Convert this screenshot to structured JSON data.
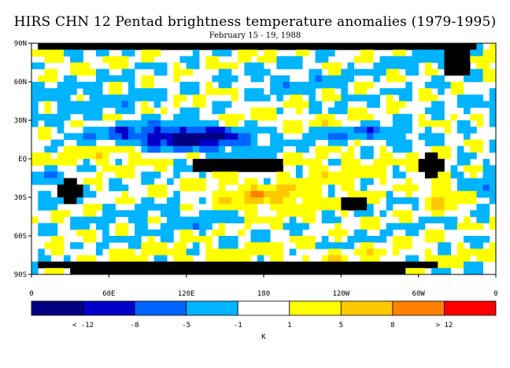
{
  "chart_data": {
    "type": "heatmap",
    "title": "HIRS CHN 12 Pentad brightness temperature anomalies (1979-1995)",
    "subtitle": "February 15 - 19, 1988",
    "y_ticks": [
      "90N",
      "60N",
      "30N",
      "EQ",
      "30S",
      "60S",
      "90S"
    ],
    "y_tick_values": [
      90,
      60,
      30,
      0,
      -30,
      -60,
      -90
    ],
    "x_ticks": [
      "0",
      "60E",
      "120E",
      "180",
      "120W",
      "60W",
      "0"
    ],
    "x_tick_values": [
      0,
      60,
      120,
      180,
      240,
      300,
      360
    ],
    "xlim": [
      0,
      360
    ],
    "ylim": [
      -90,
      90
    ],
    "colorbar": {
      "labels": [
        "< -12",
        "-8",
        "-5",
        "-1",
        "1",
        "5",
        "8",
        "> 12"
      ],
      "unit": "K",
      "bins": [
        {
          "range": "< -12",
          "color": "#000080"
        },
        {
          "range": "-12 to -8",
          "color": "#0000c8"
        },
        {
          "range": "-8 to -5",
          "color": "#0064ff"
        },
        {
          "range": "-5 to -1",
          "color": "#00b4ff"
        },
        {
          "range": "-1 to 1",
          "color": "#ffffff"
        },
        {
          "range": "1 to 5",
          "color": "#ffff00"
        },
        {
          "range": "5 to 8",
          "color": "#ffc800"
        },
        {
          "range": "8 to 12",
          "color": "#ff8000"
        },
        {
          "range": "> 12",
          "color": "#ff0000"
        }
      ]
    },
    "missing_color": "#000000",
    "anomaly_regions": [
      {
        "lon": 130,
        "lat": 15,
        "rlon": 45,
        "rlat": 10,
        "value": -10
      },
      {
        "lon": 95,
        "lat": 18,
        "rlon": 55,
        "rlat": 8,
        "value": -6
      },
      {
        "lon": 260,
        "lat": 20,
        "rlon": 35,
        "rlat": 6,
        "value": -6
      },
      {
        "lon": 30,
        "lat": 45,
        "rlon": 60,
        "rlat": 12,
        "value": -3
      },
      {
        "lon": 200,
        "lat": 60,
        "rlon": 40,
        "rlat": 10,
        "value": -3
      },
      {
        "lon": 320,
        "lat": 75,
        "rlon": 40,
        "rlat": 8,
        "value": -3
      },
      {
        "lon": 120,
        "lat": -45,
        "rlon": 50,
        "rlat": 10,
        "value": -3
      },
      {
        "lon": 0,
        "lat": -20,
        "rlon": 30,
        "rlat": 12,
        "value": -3
      },
      {
        "lon": 60,
        "lat": 5,
        "rlon": 50,
        "rlat": 8,
        "value": 4
      },
      {
        "lon": 180,
        "lat": -30,
        "rlon": 45,
        "rlat": 12,
        "value": 6
      },
      {
        "lon": 200,
        "lat": 30,
        "rlon": 50,
        "rlat": 6,
        "value": 3
      },
      {
        "lon": 350,
        "lat": 75,
        "rlon": 40,
        "rlat": 8,
        "value": 3
      },
      {
        "lon": 320,
        "lat": -30,
        "rlon": 12,
        "rlat": 10,
        "value": 6
      },
      {
        "lon": 240,
        "lat": -10,
        "rlon": 40,
        "rlat": 10,
        "value": 3
      },
      {
        "lon": 180,
        "lat": -75,
        "rlon": 180,
        "rlat": 6,
        "value": 2
      }
    ],
    "missing_regions": [
      {
        "lon": 160,
        "lat": -5,
        "rlon": 35,
        "rlat": 7
      },
      {
        "lon": 160,
        "lat": -84,
        "rlon": 160,
        "rlat": 6
      },
      {
        "lon": 175,
        "lat": 88,
        "rlon": 175,
        "rlat": 2
      },
      {
        "lon": 330,
        "lat": 75,
        "rlon": 12,
        "rlat": 10
      },
      {
        "lon": 250,
        "lat": -35,
        "rlon": 10,
        "rlat": 6
      },
      {
        "lon": 310,
        "lat": -5,
        "rlon": 10,
        "rlat": 8
      },
      {
        "lon": 30,
        "lat": -25,
        "rlon": 8,
        "rlat": 10
      }
    ]
  }
}
